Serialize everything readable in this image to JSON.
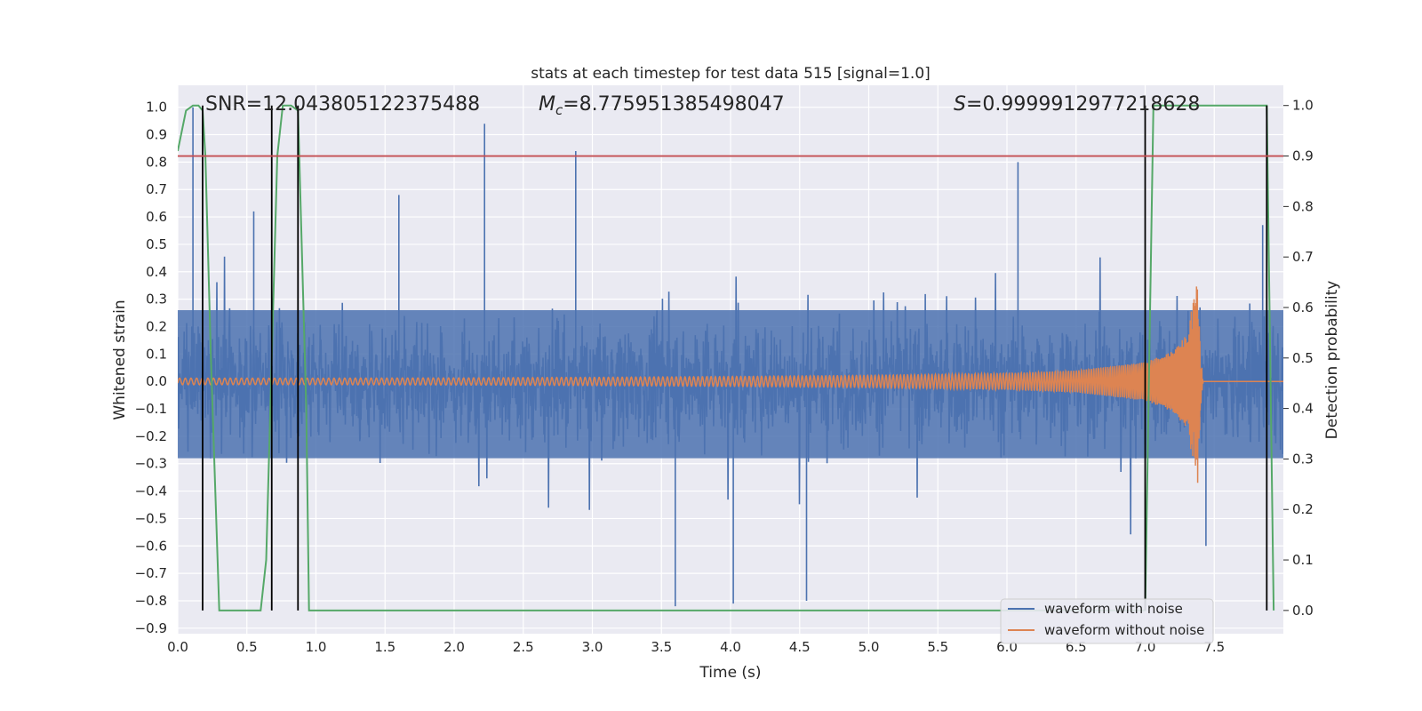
{
  "chart_data": {
    "type": "line",
    "title": "stats at each timestep for test data 515 [signal=1.0]",
    "xlabel": "Time (s)",
    "ylabel": "Whitened strain",
    "y2label": "Detection probability",
    "xlim": [
      0.0,
      8.0
    ],
    "ylim": [
      -0.92,
      1.08
    ],
    "y2lim": [
      -0.046,
      1.04
    ],
    "x_ticks": [
      0.0,
      0.5,
      1.0,
      1.5,
      2.0,
      2.5,
      3.0,
      3.5,
      4.0,
      4.5,
      5.0,
      5.5,
      6.0,
      6.5,
      7.0,
      7.5
    ],
    "x_tick_labels": [
      "0.0",
      "0.5",
      "1.0",
      "1.5",
      "2.0",
      "2.5",
      "3.0",
      "3.5",
      "4.0",
      "4.5",
      "5.0",
      "5.5",
      "6.0",
      "6.5",
      "7.0",
      "7.5"
    ],
    "y_ticks": [
      1.0,
      0.9,
      0.8,
      0.7,
      0.6,
      0.5,
      0.4,
      0.3,
      0.2,
      0.1,
      0.0,
      -0.1,
      -0.2,
      -0.3,
      -0.4,
      -0.5,
      -0.6,
      -0.7,
      -0.8,
      -0.9
    ],
    "y_tick_labels": [
      "1.0",
      "0.9",
      "0.8",
      "0.7",
      "0.6",
      "0.5",
      "0.4",
      "0.3",
      "0.2",
      "0.1",
      "0.0",
      "−0.1",
      "−0.2",
      "−0.3",
      "−0.4",
      "−0.5",
      "−0.6",
      "−0.7",
      "−0.8",
      "−0.9"
    ],
    "y2_ticks": [
      1.0,
      0.9,
      0.8,
      0.7,
      0.6,
      0.5,
      0.4,
      0.3,
      0.2,
      0.1,
      0.0
    ],
    "y2_tick_labels": [
      "1.0",
      "0.9",
      "0.8",
      "0.7",
      "0.6",
      "0.5",
      "0.4",
      "0.3",
      "0.2",
      "0.1",
      "0.0"
    ],
    "grid": true,
    "legend_position": "lower-right",
    "annotations": {
      "snr": "SNR=12.043805122375488",
      "mc": "=8.775951385498047",
      "mc_symbol": "M",
      "mc_subscript": "c",
      "s": "=0.9999912977218628",
      "s_symbol": "S"
    },
    "threshold": {
      "value": 0.9,
      "axis": "y2",
      "color": "#c44e52"
    },
    "event_markers": {
      "x": [
        0.18,
        0.68,
        0.87,
        7.0,
        7.88
      ],
      "y2_range": [
        0.0,
        1.0
      ],
      "color": "#000000"
    },
    "series": [
      {
        "name": "waveform with noise",
        "color": "#4c72b0",
        "axis": "y",
        "band": {
          "typical_low": -0.28,
          "typical_high": 0.26
        },
        "peaks_x": [
          0.11,
          0.55,
          1.6,
          2.22,
          2.88,
          3.6,
          4.02,
          4.55,
          6.08,
          7.44,
          7.85
        ],
        "peaks_y": [
          1.0,
          0.62,
          0.68,
          0.94,
          0.84,
          -0.82,
          -0.81,
          -0.8,
          0.8,
          -0.6,
          0.57
        ]
      },
      {
        "name": "waveform without noise",
        "color": "#dd8452",
        "axis": "y",
        "x": [
          0.0,
          1.0,
          2.0,
          3.0,
          4.0,
          5.0,
          6.0,
          6.5,
          7.0,
          7.2,
          7.3,
          7.38,
          7.4,
          7.42,
          8.0
        ],
        "envelope": [
          0.012,
          0.012,
          0.013,
          0.015,
          0.018,
          0.022,
          0.03,
          0.04,
          0.07,
          0.11,
          0.17,
          0.38,
          0.1,
          0.0,
          0.0
        ]
      },
      {
        "name": "detection probability",
        "color": "#55a868",
        "axis": "y2",
        "x": [
          0.0,
          0.06,
          0.11,
          0.15,
          0.18,
          0.2,
          0.24,
          0.3,
          0.6,
          0.64,
          0.72,
          0.76,
          0.82,
          0.87,
          0.93,
          0.95,
          7.0,
          7.06,
          7.88,
          7.93
        ],
        "y": [
          0.91,
          0.99,
          1.0,
          1.0,
          0.99,
          0.9,
          0.5,
          0.0,
          0.0,
          0.1,
          0.9,
          1.0,
          1.0,
          0.99,
          0.4,
          0.0,
          0.0,
          1.0,
          1.0,
          0.0
        ]
      }
    ]
  }
}
